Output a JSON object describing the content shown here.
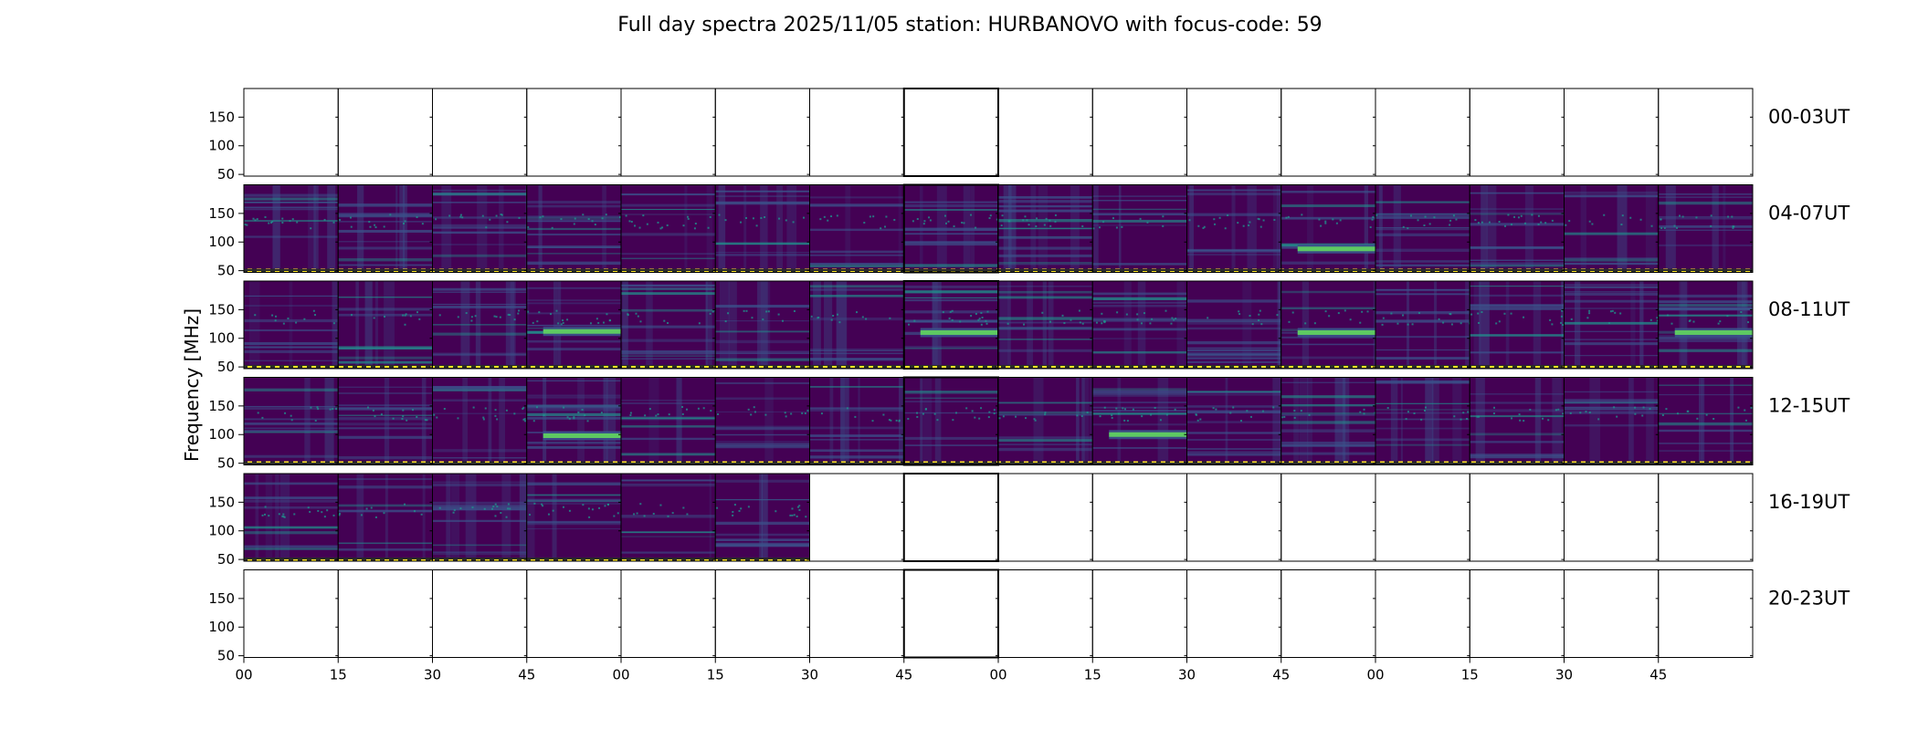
{
  "chart_data": {
    "type": "heatmap",
    "title": "Full day spectra 2025/11/05 station: HURBANOVO with focus-code: 59",
    "ylabel": "Frequency [MHz]",
    "xlabel": "",
    "y_ticks": [
      "150",
      "100",
      "50"
    ],
    "x_ticks": [
      "00",
      "15",
      "30",
      "45",
      "00",
      "15",
      "30",
      "45",
      "00",
      "15",
      "30",
      "45",
      "00",
      "15",
      "30",
      "45"
    ],
    "colormap": [
      "#440154",
      "#3b528b",
      "#21918c",
      "#5ec962",
      "#fde725"
    ],
    "rows": [
      {
        "label": "00-03UT",
        "filled": [
          false,
          false,
          false,
          false,
          false,
          false,
          false,
          false,
          false,
          false,
          false,
          false,
          false,
          false,
          false,
          false
        ]
      },
      {
        "label": "04-07UT",
        "filled": [
          true,
          true,
          true,
          true,
          true,
          true,
          true,
          true,
          true,
          true,
          true,
          true,
          true,
          true,
          true,
          true
        ]
      },
      {
        "label": "08-11UT",
        "filled": [
          true,
          true,
          true,
          true,
          true,
          true,
          true,
          true,
          true,
          true,
          true,
          true,
          true,
          true,
          true,
          true
        ]
      },
      {
        "label": "12-15UT",
        "filled": [
          true,
          true,
          true,
          true,
          true,
          true,
          true,
          true,
          true,
          true,
          true,
          true,
          true,
          true,
          true,
          true
        ]
      },
      {
        "label": "16-19UT",
        "filled": [
          true,
          true,
          true,
          true,
          true,
          true,
          false,
          false,
          false,
          false,
          false,
          false,
          false,
          false,
          false,
          false
        ]
      },
      {
        "label": "20-23UT",
        "filled": [
          false,
          false,
          false,
          false,
          false,
          false,
          false,
          false,
          false,
          false,
          false,
          false,
          false,
          false,
          false,
          false
        ]
      }
    ],
    "bright_bands": [
      {
        "row": 2,
        "panel": 7,
        "freq": 110
      },
      {
        "row": 2,
        "panel": 11,
        "freq": 110
      },
      {
        "row": 2,
        "panel": 15,
        "freq": 110
      },
      {
        "row": 2,
        "panel": 3,
        "freq": 112
      },
      {
        "row": 3,
        "panel": 9,
        "freq": 100
      },
      {
        "row": 3,
        "panel": 3,
        "freq": 98
      },
      {
        "row": 1,
        "panel": 11,
        "freq": 88
      }
    ]
  }
}
